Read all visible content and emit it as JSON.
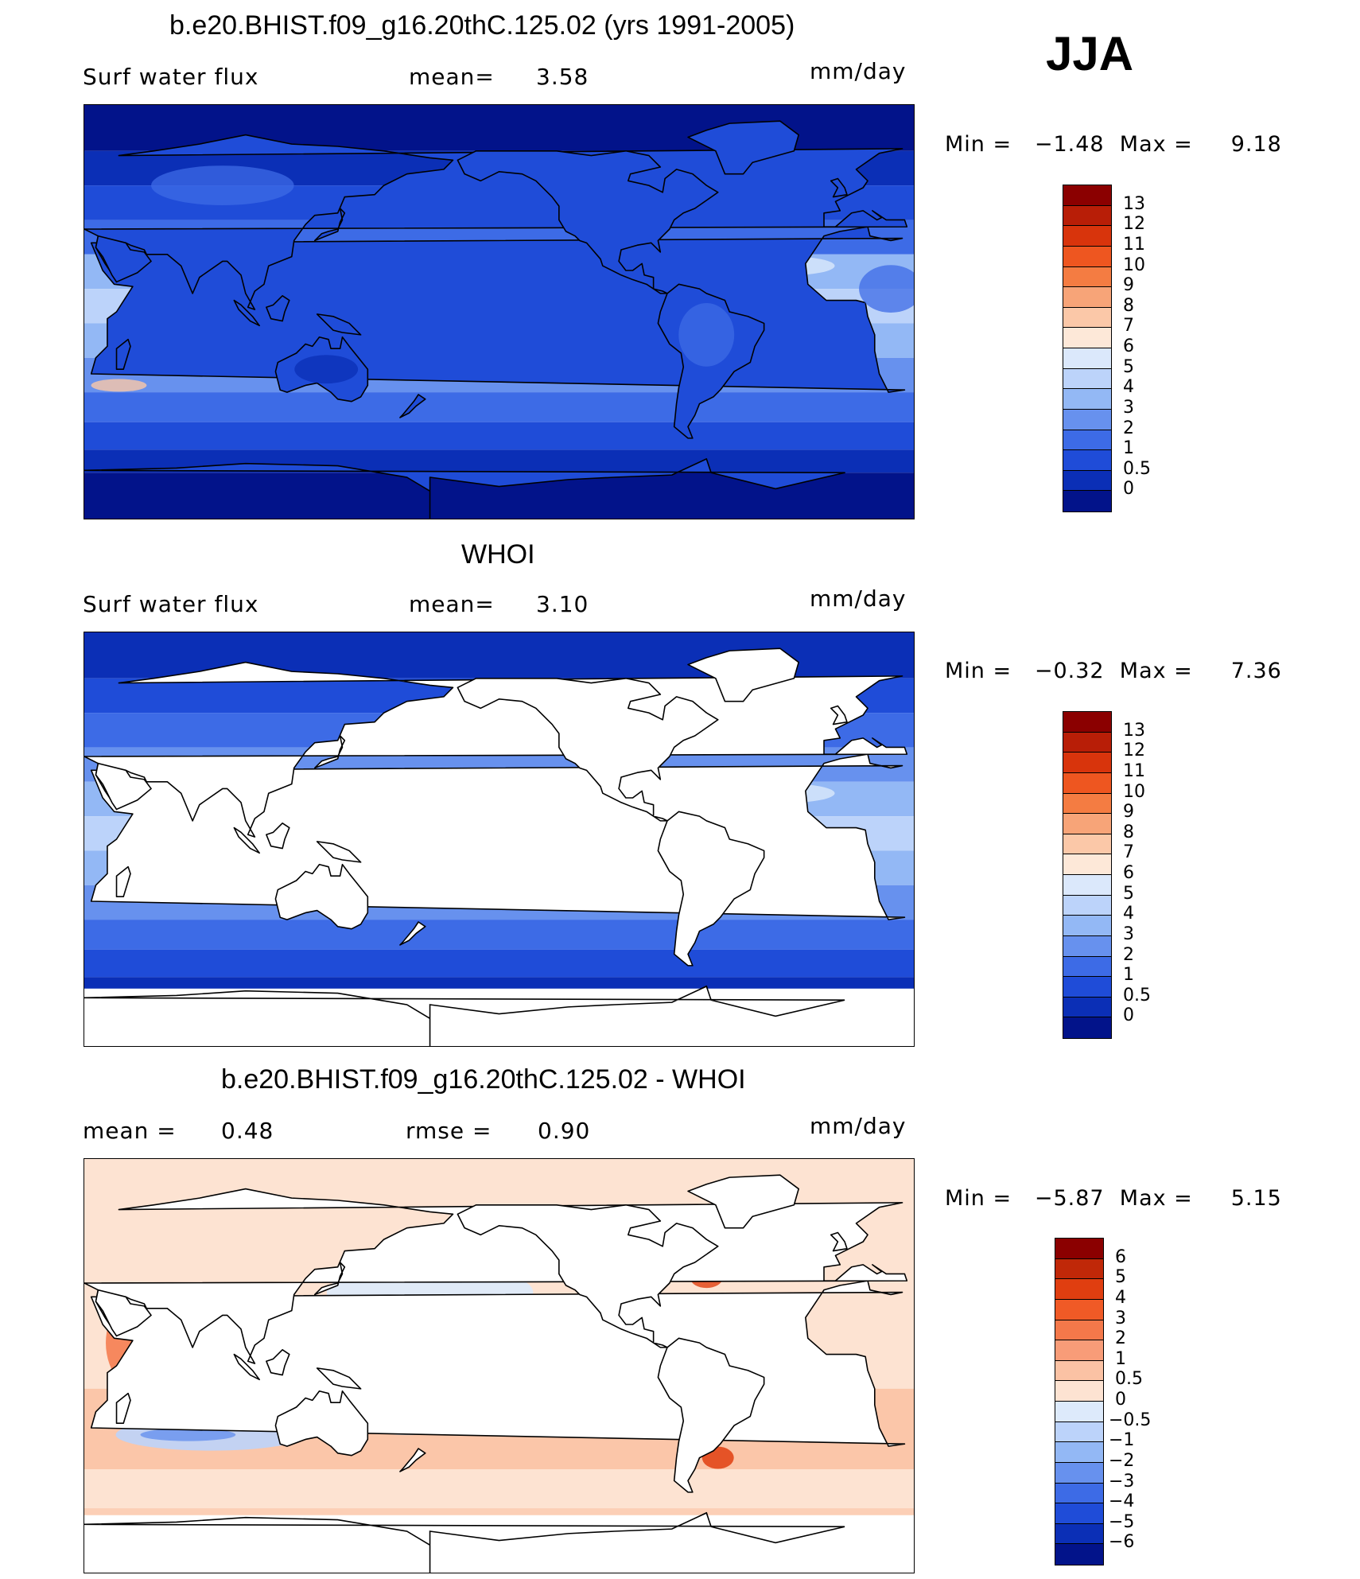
{
  "season": "JJA",
  "land_color": "#ffffff",
  "coast_color": "#000000",
  "chart_data": [
    {
      "type": "heatmap",
      "title": "b.e20.BHIST.f09_g16.20thC.125.02 (yrs 1991-2005)",
      "variable": "Surf water flux",
      "units": "mm/day",
      "stat_label": "mean=",
      "stat_value": "3.58",
      "minmax_label": "Min =   −1.48  Max =     9.18",
      "min": -1.48,
      "max": 9.18,
      "land_masked": false,
      "levels": [
        "13",
        "12",
        "11",
        "10",
        "9",
        "8",
        "7",
        "6",
        "5",
        "4",
        "3",
        "2",
        "1",
        "0.5",
        "0"
      ],
      "colors": [
        "#8b0000",
        "#b81e07",
        "#d8340c",
        "#ee5620",
        "#f47c42",
        "#f7a478",
        "#fbc8a8",
        "#fde8d8",
        "#dbe8fb",
        "#bcd3fa",
        "#93b8f5",
        "#6791ee",
        "#3d6be6",
        "#1f4cd8",
        "#0b2fb6",
        "#02138a"
      ]
    },
    {
      "type": "heatmap",
      "title": "WHOI",
      "variable": "Surf water flux",
      "units": "mm/day",
      "stat_label": "mean=",
      "stat_value": "3.10",
      "minmax_label": "Min =   −0.32  Max =     7.36",
      "min": -0.32,
      "max": 7.36,
      "land_masked": true,
      "levels": [
        "13",
        "12",
        "11",
        "10",
        "9",
        "8",
        "7",
        "6",
        "5",
        "4",
        "3",
        "2",
        "1",
        "0.5",
        "0"
      ],
      "colors": [
        "#8b0000",
        "#b81e07",
        "#d8340c",
        "#ee5620",
        "#f47c42",
        "#f7a478",
        "#fbc8a8",
        "#fde8d8",
        "#dbe8fb",
        "#bcd3fa",
        "#93b8f5",
        "#6791ee",
        "#3d6be6",
        "#1f4cd8",
        "#0b2fb6",
        "#02138a"
      ]
    },
    {
      "type": "heatmap",
      "title": "b.e20.BHIST.f09_g16.20thC.125.02 - WHOI",
      "units": "mm/day",
      "stat_label": "mean =",
      "stat_value": "0.48",
      "stat2_label": "rmse =",
      "stat2_value": "0.90",
      "minmax_label": "Min =   −5.87  Max =     5.15",
      "min": -5.87,
      "max": 5.15,
      "land_masked": true,
      "levels": [
        "6",
        "5",
        "4",
        "3",
        "2",
        "1",
        "0.5",
        "0",
        "−0.5",
        "−1",
        "−2",
        "−3",
        "−4",
        "−5",
        "−6"
      ],
      "colors": [
        "#8b0000",
        "#c02808",
        "#e03e10",
        "#f05a26",
        "#f4784a",
        "#f89c78",
        "#fbc2a4",
        "#fde3d2",
        "#ddeafb",
        "#bcd3fa",
        "#93b8f5",
        "#6791ee",
        "#3d6be6",
        "#1f4cd8",
        "#0b2fb6",
        "#02138a"
      ]
    }
  ]
}
